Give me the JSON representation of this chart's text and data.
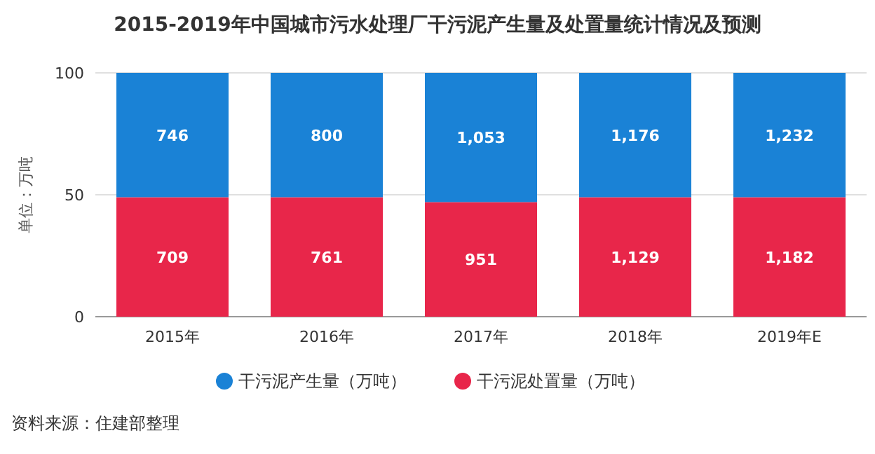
{
  "chart_data": {
    "type": "bar",
    "stacked": true,
    "title": "2015-2019年中国城市污水处理厂干污泥产生量及处置量统计情况及预测",
    "ylabel": "单位：万吨",
    "categories": [
      "2015年",
      "2016年",
      "2017年",
      "2018年",
      "2019年E"
    ],
    "series": [
      {
        "name": "干污泥处置量（万吨）",
        "color": "#e8264a",
        "values": [
          49,
          49,
          47,
          49,
          49
        ]
      },
      {
        "name": "干污泥产生量（万吨）",
        "color": "#1a82d6",
        "values": [
          51,
          51,
          53,
          51,
          51
        ]
      }
    ],
    "ylim": [
      0,
      100
    ],
    "yticks": [
      0,
      50,
      100
    ],
    "grid": "y",
    "legend": "bottom",
    "annotations": [
      "709",
      "761",
      "951",
      "1,129",
      "1,182",
      "746",
      "800",
      "1,053",
      "1,176",
      "1,232",
      "资料来源：住建部整理"
    ]
  }
}
